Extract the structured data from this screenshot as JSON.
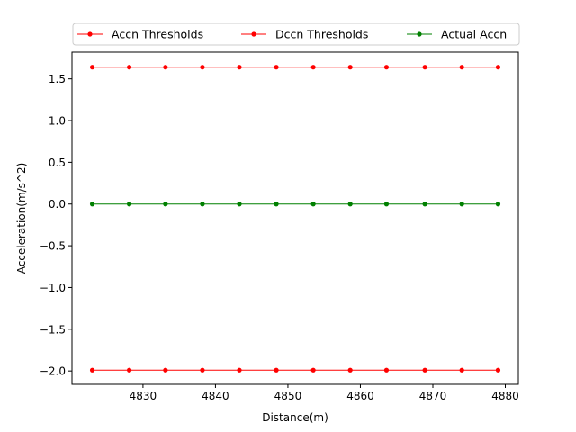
{
  "chart_data": {
    "type": "line",
    "title": "",
    "xlabel": "Distance(m)",
    "ylabel": "Acceleration(m/s^2)",
    "xlim": [
      4820.2,
      4881.8
    ],
    "ylim": [
      -2.16,
      1.82
    ],
    "xticks": [
      4830,
      4840,
      4850,
      4860,
      4870,
      4880
    ],
    "yticks": [
      -2.0,
      -1.5,
      -1.0,
      -0.5,
      0.0,
      0.5,
      1.0,
      1.5
    ],
    "grid": false,
    "legend": "top, outside",
    "x": [
      4823.0,
      4828.1,
      4833.1,
      4838.2,
      4843.3,
      4848.4,
      4853.5,
      4858.6,
      4863.6,
      4868.9,
      4874.0,
      4879.0
    ],
    "series": [
      {
        "name": "Accn Thresholds",
        "color": "#ff0000",
        "values": [
          1.64,
          1.64,
          1.64,
          1.64,
          1.64,
          1.64,
          1.64,
          1.64,
          1.64,
          1.64,
          1.64,
          1.64
        ]
      },
      {
        "name": "Dccn Thresholds",
        "color": "#ff0000",
        "values": [
          -1.99,
          -1.99,
          -1.99,
          -1.99,
          -1.99,
          -1.99,
          -1.99,
          -1.99,
          -1.99,
          -1.99,
          -1.99,
          -1.99
        ]
      },
      {
        "name": "Actual Accn",
        "color": "#008000",
        "values": [
          0.0,
          0.0,
          0.0,
          0.0,
          0.0,
          0.0,
          0.0,
          0.0,
          0.0,
          0.0,
          0.0,
          0.0
        ]
      }
    ]
  }
}
